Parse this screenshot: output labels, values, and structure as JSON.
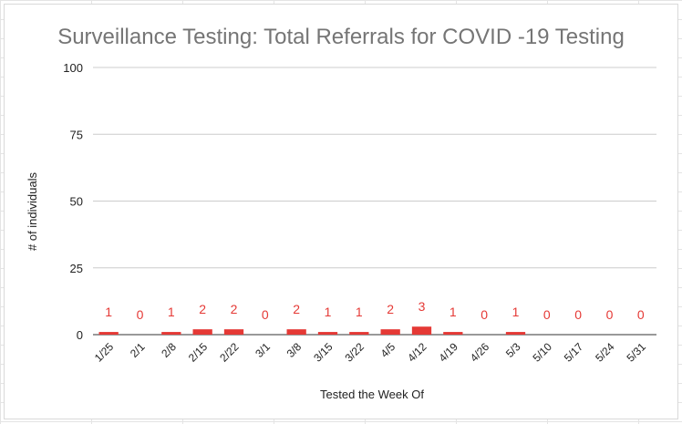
{
  "chart_data": {
    "type": "bar",
    "title": "Surveillance Testing: Total Referrals for COVID -19 Testing",
    "xlabel": "Tested the Week Of",
    "ylabel": "# of individuals",
    "ylim": [
      0,
      100
    ],
    "yticks": [
      "0",
      "25",
      "50",
      "75",
      "100"
    ],
    "categories": [
      "1/25",
      "2/1",
      "2/8",
      "2/15",
      "2/22",
      "3/1",
      "3/8",
      "3/15",
      "3/22",
      "4/5",
      "4/12",
      "4/19",
      "4/26",
      "5/3",
      "5/10",
      "5/17",
      "5/24",
      "5/31"
    ],
    "values": [
      1,
      0,
      1,
      2,
      2,
      0,
      2,
      1,
      1,
      2,
      3,
      1,
      0,
      1,
      0,
      0,
      0,
      0
    ],
    "grid": true,
    "legend": "none",
    "bar_color": "#e53935",
    "label_color": "#e53935"
  }
}
